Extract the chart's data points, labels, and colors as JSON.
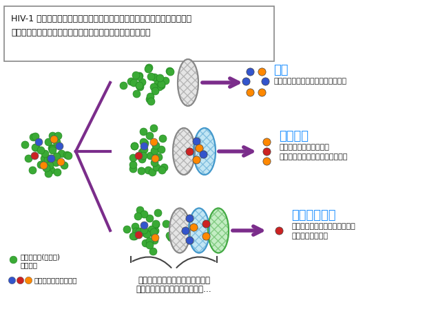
{
  "title_box_text": "HIV-1 は均一ではなく、多数の変異ウイルスの集団として存在している。\nこの変異の中には、薬剤耐性を持つものもあるかもしれない",
  "bg_color": "#ffffff",
  "box_bg": "#ffffff",
  "box_border": "#888888",
  "purple": "#7B2D8B",
  "cyan_label": "#1E90FF",
  "green_virus": "#3aaa35",
  "blue_virus": "#3355cc",
  "red_virus": "#cc2222",
  "orange_virus": "#FF8800",
  "label_single": "単剤",
  "label_double": "二剤併用",
  "label_triple": "多剤併用療法",
  "desc_single": "多くの変異ウイルスが薬から逃れる",
  "desc_double1": "単剤療法ほどではないが",
  "desc_double2": "まだ薬から逃れるウイルスがいる",
  "desc_triple1": "治療から逃れられるウイルスは",
  "desc_triple2": "こくわずかである",
  "legend1a": "薬剤感受性(野生型)",
  "legend1b": "ウイルス",
  "legend2": "薬剤耐性変異ウイルス",
  "bottom_text1": "個々の薬を、ウイルスを選別する",
  "bottom_text2": "フィルターとして考えてみると…"
}
